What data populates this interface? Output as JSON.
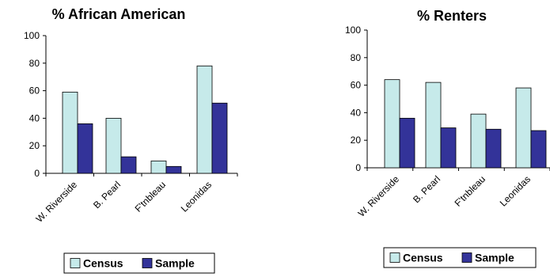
{
  "series_style": [
    {
      "name": "Census",
      "color": "#c6eaea"
    },
    {
      "name": "Sample",
      "color": "#333399"
    }
  ],
  "chart_data": [
    {
      "type": "bar",
      "title": "% African American",
      "categories": [
        "W. Riverside",
        "B. Pearl",
        "F'tnbleau",
        "Leonidas"
      ],
      "series": [
        {
          "name": "Census",
          "values": [
            59,
            40,
            9,
            78
          ]
        },
        {
          "name": "Sample",
          "values": [
            36,
            12,
            5,
            51
          ]
        }
      ],
      "ylim": [
        0,
        100
      ],
      "yticks": [
        0,
        20,
        40,
        60,
        80,
        100
      ],
      "xlabel": "",
      "ylabel": "",
      "grid": false,
      "legend": "bottom"
    },
    {
      "type": "bar",
      "title": "% Renters",
      "categories": [
        "W. Riverside",
        "B. Pearl",
        "F'tnbleau",
        "Leonidas"
      ],
      "series": [
        {
          "name": "Census",
          "values": [
            64,
            62,
            39,
            58
          ]
        },
        {
          "name": "Sample",
          "values": [
            36,
            29,
            28,
            27
          ]
        }
      ],
      "ylim": [
        0,
        100
      ],
      "yticks": [
        0,
        20,
        40,
        60,
        80,
        100
      ],
      "xlabel": "",
      "ylabel": "",
      "grid": false,
      "legend": "bottom"
    }
  ]
}
